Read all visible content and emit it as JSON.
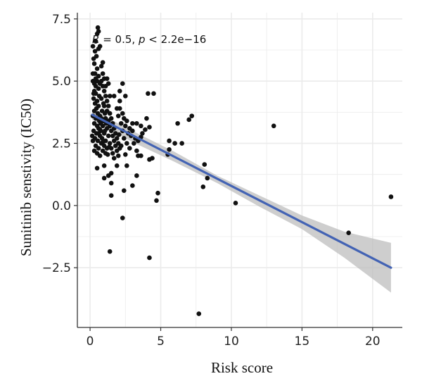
{
  "colors": {
    "point": "#111111",
    "fit_line": "#4363B4",
    "ci_band": "#BDBDBD",
    "grid": "#EBEBEB",
    "axis": "#333333"
  },
  "chart_data": {
    "type": "scatter",
    "title": "",
    "xlabel": "Risk score",
    "ylabel": "Sunitinib senstivity (IC50)",
    "xlim": [
      -0.9,
      22.1
    ],
    "ylim": [
      -4.9,
      7.75
    ],
    "xticks": [
      0,
      5,
      10,
      15,
      20
    ],
    "yticks": [
      7.5,
      5.0,
      2.5,
      0.0,
      -2.5
    ],
    "xtick_labels": [
      "0",
      "5",
      "10",
      "15",
      "20"
    ],
    "ytick_labels": [
      "7.5",
      "5.0",
      "2.5",
      "0.0",
      "−2.5"
    ],
    "grid": true,
    "annotation": {
      "r_symbol": "R",
      "r_rest": " =   0.5, ",
      "p_symbol": "p",
      "p_rest": " < 2.2e−16"
    },
    "fit": {
      "x": [
        0.15,
        21.3
      ],
      "y": [
        3.65,
        -2.5
      ],
      "ci_upper": [
        [
          0.15,
          3.85
        ],
        [
          3,
          3.0
        ],
        [
          6,
          2.15
        ],
        [
          9,
          1.2
        ],
        [
          12,
          0.4
        ],
        [
          15,
          -0.4
        ],
        [
          18,
          -1.05
        ],
        [
          21.3,
          -1.5
        ]
      ],
      "ci_lower": [
        [
          0.15,
          3.45
        ],
        [
          3,
          2.55
        ],
        [
          6,
          1.75
        ],
        [
          9,
          0.9
        ],
        [
          12,
          -0.05
        ],
        [
          15,
          -0.95
        ],
        [
          18,
          -2.1
        ],
        [
          21.3,
          -3.5
        ]
      ]
    },
    "points": [
      [
        0.2,
        5.0
      ],
      [
        0.3,
        4.6
      ],
      [
        0.25,
        4.3
      ],
      [
        0.4,
        4.5
      ],
      [
        0.35,
        4.1
      ],
      [
        0.5,
        4.2
      ],
      [
        0.3,
        3.8
      ],
      [
        0.45,
        3.9
      ],
      [
        0.6,
        4.0
      ],
      [
        0.2,
        3.6
      ],
      [
        0.4,
        3.5
      ],
      [
        0.55,
        3.7
      ],
      [
        0.7,
        3.6
      ],
      [
        0.3,
        3.3
      ],
      [
        0.5,
        3.2
      ],
      [
        0.65,
        3.4
      ],
      [
        0.8,
        3.5
      ],
      [
        0.25,
        3.0
      ],
      [
        0.45,
        2.9
      ],
      [
        0.6,
        3.1
      ],
      [
        0.75,
        3.0
      ],
      [
        0.9,
        3.2
      ],
      [
        0.35,
        2.7
      ],
      [
        0.55,
        2.6
      ],
      [
        0.7,
        2.8
      ],
      [
        0.85,
        2.7
      ],
      [
        1.0,
        2.9
      ],
      [
        0.4,
        2.4
      ],
      [
        0.6,
        2.3
      ],
      [
        0.8,
        2.5
      ],
      [
        1.0,
        2.4
      ],
      [
        1.1,
        2.6
      ],
      [
        0.5,
        2.1
      ],
      [
        0.7,
        2.0
      ],
      [
        0.9,
        2.2
      ],
      [
        1.1,
        2.1
      ],
      [
        1.2,
        2.3
      ],
      [
        0.3,
        2.2
      ],
      [
        0.2,
        2.6
      ],
      [
        0.15,
        2.8
      ],
      [
        0.9,
        4.8
      ],
      [
        1.0,
        4.6
      ],
      [
        1.1,
        4.4
      ],
      [
        1.2,
        4.2
      ],
      [
        1.3,
        4.0
      ],
      [
        1.0,
        4.0
      ],
      [
        1.2,
        3.8
      ],
      [
        1.4,
        3.7
      ],
      [
        1.1,
        3.5
      ],
      [
        1.3,
        3.4
      ],
      [
        1.5,
        3.5
      ],
      [
        1.4,
        3.2
      ],
      [
        1.6,
        3.3
      ],
      [
        1.2,
        3.1
      ],
      [
        1.5,
        3.0
      ],
      [
        1.7,
        3.1
      ],
      [
        1.3,
        2.8
      ],
      [
        1.6,
        2.8
      ],
      [
        1.8,
        2.9
      ],
      [
        1.4,
        2.5
      ],
      [
        1.7,
        2.6
      ],
      [
        1.9,
        2.7
      ],
      [
        1.5,
        2.3
      ],
      [
        1.8,
        2.4
      ],
      [
        2.0,
        2.5
      ],
      [
        1.6,
        2.1
      ],
      [
        1.9,
        2.2
      ],
      [
        2.1,
        2.3
      ],
      [
        1.7,
        1.9
      ],
      [
        2.0,
        2.0
      ],
      [
        0.8,
        4.3
      ],
      [
        0.95,
        4.1
      ],
      [
        0.65,
        4.4
      ],
      [
        0.85,
        3.8
      ],
      [
        1.05,
        3.7
      ],
      [
        0.75,
        3.3
      ],
      [
        0.95,
        3.4
      ],
      [
        1.15,
        3.3
      ],
      [
        0.6,
        2.9
      ],
      [
        1.05,
        3.0
      ],
      [
        0.3,
        4.9
      ],
      [
        0.4,
        4.8
      ],
      [
        0.5,
        5.0
      ],
      [
        0.6,
        4.7
      ],
      [
        0.7,
        4.9
      ],
      [
        0.8,
        5.0
      ],
      [
        0.35,
        5.3
      ],
      [
        0.5,
        5.5
      ],
      [
        0.3,
        5.7
      ],
      [
        0.45,
        6.0
      ],
      [
        0.2,
        6.4
      ],
      [
        0.4,
        6.6
      ],
      [
        0.5,
        6.9
      ],
      [
        0.6,
        7.0
      ],
      [
        0.55,
        7.15
      ],
      [
        0.25,
        5.9
      ],
      [
        0.35,
        6.2
      ],
      [
        0.6,
        6.3
      ],
      [
        0.7,
        6.4
      ],
      [
        0.8,
        5.6
      ],
      [
        0.6,
        5.2
      ],
      [
        0.9,
        5.3
      ],
      [
        1.0,
        5.1
      ],
      [
        1.2,
        5.1
      ],
      [
        1.3,
        4.9
      ],
      [
        1.1,
        4.8
      ],
      [
        0.2,
        5.3
      ],
      [
        0.9,
        5.75
      ],
      [
        0.4,
        5.1
      ],
      [
        0.25,
        4.5
      ],
      [
        2.1,
        3.9
      ],
      [
        2.3,
        3.7
      ],
      [
        2.0,
        3.6
      ],
      [
        2.4,
        3.5
      ],
      [
        2.2,
        3.3
      ],
      [
        2.6,
        3.4
      ],
      [
        2.5,
        3.2
      ],
      [
        2.8,
        3.1
      ],
      [
        2.3,
        3.0
      ],
      [
        2.7,
        2.9
      ],
      [
        3.0,
        3.0
      ],
      [
        2.4,
        2.7
      ],
      [
        2.9,
        2.8
      ],
      [
        3.2,
        2.7
      ],
      [
        2.6,
        2.5
      ],
      [
        3.1,
        2.5
      ],
      [
        3.4,
        2.6
      ],
      [
        2.2,
        2.4
      ],
      [
        2.8,
        2.3
      ],
      [
        3.3,
        2.2
      ],
      [
        2.3,
        4.9
      ],
      [
        2.5,
        4.4
      ],
      [
        2.1,
        4.2
      ],
      [
        3.0,
        3.3
      ],
      [
        3.3,
        3.3
      ],
      [
        3.6,
        3.2
      ],
      [
        3.7,
        2.9
      ],
      [
        2.5,
        2.05
      ],
      [
        3.4,
        2.0
      ],
      [
        3.6,
        2.0
      ],
      [
        3.6,
        2.75
      ],
      [
        3.9,
        3.05
      ],
      [
        4.2,
        3.15
      ],
      [
        4.0,
        3.5
      ],
      [
        4.1,
        4.5
      ],
      [
        4.5,
        4.5
      ],
      [
        1.9,
        3.9
      ],
      [
        1.7,
        4.4
      ],
      [
        2.1,
        4.6
      ],
      [
        1.4,
        4.4
      ],
      [
        0.5,
        1.5
      ],
      [
        1.0,
        1.6
      ],
      [
        1.5,
        1.3
      ],
      [
        1.3,
        1.2
      ],
      [
        1.0,
        1.1
      ],
      [
        1.5,
        0.9
      ],
      [
        1.5,
        0.4
      ],
      [
        1.9,
        1.6
      ],
      [
        2.6,
        1.6
      ],
      [
        3.3,
        1.2
      ],
      [
        3.0,
        0.8
      ],
      [
        2.4,
        0.6
      ],
      [
        2.3,
        -0.5
      ],
      [
        1.4,
        -1.85
      ],
      [
        4.2,
        1.85
      ],
      [
        4.4,
        1.9
      ],
      [
        4.8,
        0.5
      ],
      [
        4.7,
        0.2
      ],
      [
        4.2,
        -2.1
      ],
      [
        7.7,
        -4.35
      ],
      [
        5.6,
        2.6
      ],
      [
        5.5,
        2.05
      ],
      [
        5.6,
        2.25
      ],
      [
        6.0,
        2.5
      ],
      [
        6.5,
        2.5
      ],
      [
        6.2,
        3.3
      ],
      [
        7.0,
        3.45
      ],
      [
        7.2,
        3.6
      ],
      [
        8.1,
        1.65
      ],
      [
        8.3,
        1.1
      ],
      [
        8.0,
        0.75
      ],
      [
        10.3,
        0.1
      ],
      [
        13.0,
        3.2
      ],
      [
        18.3,
        -1.1
      ],
      [
        21.3,
        0.35
      ],
      [
        0.7,
        3.05
      ],
      [
        0.9,
        2.55
      ],
      [
        1.25,
        2.05
      ],
      [
        1.35,
        2.35
      ],
      [
        2.05,
        2.85
      ]
    ]
  }
}
